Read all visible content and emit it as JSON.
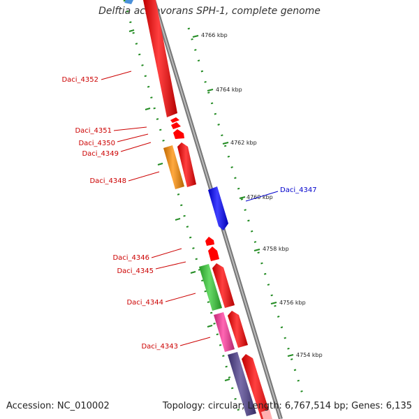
{
  "title": "Delftia acidovorans SPH-1, complete genome",
  "footer": {
    "accession": "Accession: NC_010002",
    "summary": "Topology: circular; Length: 6,767,514 bp; Genes: 6,135"
  },
  "ticks": [
    "4766 kbp",
    "4764 kbp",
    "4762 kbp",
    "4760 kbp",
    "4758 kbp",
    "4756 kbp",
    "4754 kbp"
  ],
  "genes": [
    {
      "name": "Daci_4352",
      "color": "#cc0000"
    },
    {
      "name": "Daci_4351",
      "color": "#cc0000"
    },
    {
      "name": "Daci_4350",
      "color": "#cc0000"
    },
    {
      "name": "Daci_4349",
      "color": "#cc0000"
    },
    {
      "name": "Daci_4348",
      "color": "#cc0000"
    },
    {
      "name": "Daci_4347",
      "color": "#0000cc"
    },
    {
      "name": "Daci_4346",
      "color": "#cc0000"
    },
    {
      "name": "Daci_4345",
      "color": "#cc0000"
    },
    {
      "name": "Daci_4344",
      "color": "#cc0000"
    },
    {
      "name": "Daci_4343",
      "color": "#cc0000"
    }
  ],
  "colors": {
    "red_feature": "#ff0000",
    "orange_feature": "#ff8c00",
    "blue_feature": "#0000ff",
    "green_feature": "#33cc33",
    "pink_feature": "#ff3399",
    "purple_feature": "#4b3c8c",
    "backbone": "#888888",
    "dots": "#228b22"
  }
}
